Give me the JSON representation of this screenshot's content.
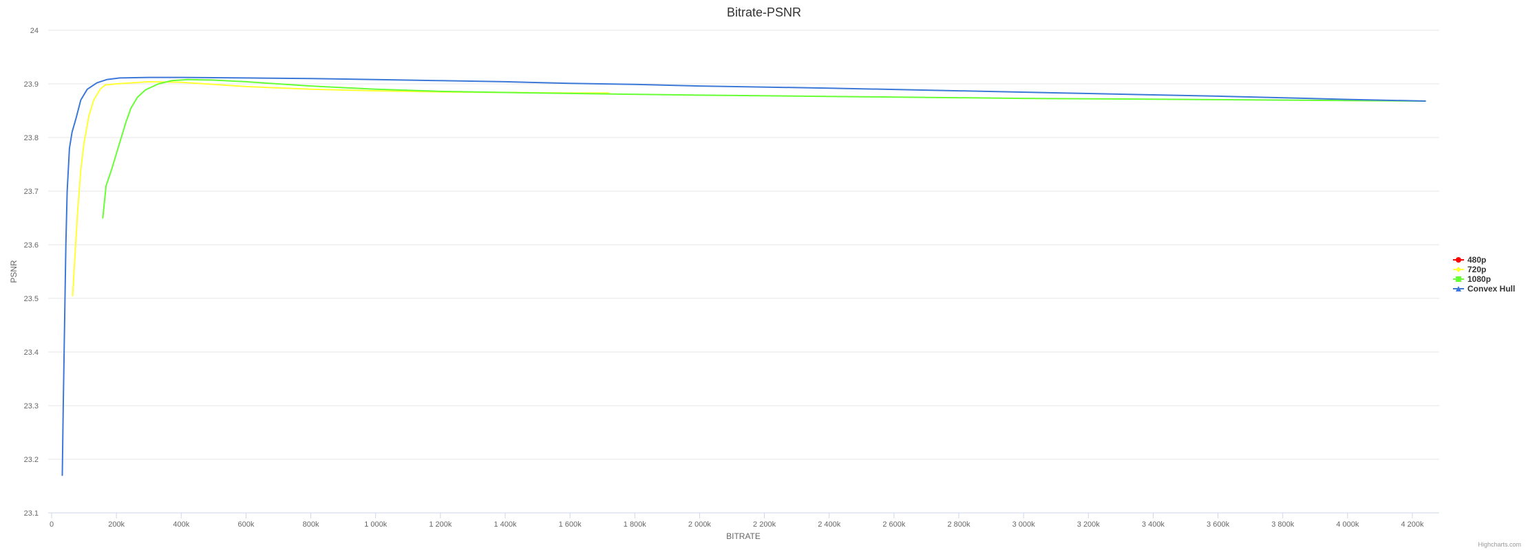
{
  "chart_data": {
    "type": "line",
    "title": "Bitrate-PSNR",
    "xlabel": "BITRATE",
    "ylabel": "PSNR",
    "xlim": [
      0,
      4300000
    ],
    "ylim": [
      23.1,
      24
    ],
    "x_ticks": [
      0,
      200000,
      400000,
      600000,
      800000,
      1000000,
      1200000,
      1400000,
      1600000,
      1800000,
      2000000,
      2200000,
      2400000,
      2600000,
      2800000,
      3000000,
      3200000,
      3400000,
      3600000,
      3800000,
      4000000,
      4200000
    ],
    "x_tick_labels": [
      "0",
      "200k",
      "400k",
      "600k",
      "800k",
      "1 000k",
      "1 200k",
      "1 400k",
      "1 600k",
      "1 800k",
      "2 000k",
      "2 200k",
      "2 400k",
      "2 600k",
      "2 800k",
      "3 000k",
      "3 200k",
      "3 400k",
      "3 600k",
      "3 800k",
      "4 000k",
      "4 200k"
    ],
    "y_ticks": [
      23.1,
      23.2,
      23.3,
      23.4,
      23.5,
      23.6,
      23.7,
      23.8,
      23.9,
      24
    ],
    "y_tick_labels": [
      "23.1",
      "23.2",
      "23.3",
      "23.4",
      "23.5",
      "23.6",
      "23.7",
      "23.8",
      "23.9",
      "24"
    ],
    "grid": true,
    "legend_position": "right",
    "series": [
      {
        "name": "480p",
        "color": "#ff0000",
        "marker": "circle",
        "points": []
      },
      {
        "name": "720p",
        "color": "#ffff33",
        "marker": "diamond",
        "points": [
          [
            65000,
            23.505
          ],
          [
            70000,
            23.56
          ],
          [
            80000,
            23.66
          ],
          [
            90000,
            23.74
          ],
          [
            100000,
            23.79
          ],
          [
            115000,
            23.84
          ],
          [
            130000,
            23.87
          ],
          [
            150000,
            23.89
          ],
          [
            165000,
            23.898
          ],
          [
            200000,
            23.9
          ],
          [
            300000,
            23.904
          ],
          [
            400000,
            23.903
          ],
          [
            500000,
            23.899
          ],
          [
            600000,
            23.895
          ],
          [
            800000,
            23.89
          ],
          [
            1000000,
            23.887
          ],
          [
            1200000,
            23.885
          ],
          [
            1400000,
            23.884
          ],
          [
            1600000,
            23.883
          ],
          [
            1720000,
            23.883
          ]
        ]
      },
      {
        "name": "1080p",
        "color": "#66ff33",
        "marker": "square",
        "points": [
          [
            158000,
            23.65
          ],
          [
            168000,
            23.71
          ],
          [
            185000,
            23.74
          ],
          [
            200000,
            23.77
          ],
          [
            215000,
            23.8
          ],
          [
            230000,
            23.83
          ],
          [
            245000,
            23.855
          ],
          [
            265000,
            23.875
          ],
          [
            290000,
            23.889
          ],
          [
            330000,
            23.9
          ],
          [
            370000,
            23.906
          ],
          [
            420000,
            23.908
          ],
          [
            500000,
            23.907
          ],
          [
            600000,
            23.904
          ],
          [
            800000,
            23.896
          ],
          [
            1000000,
            23.89
          ],
          [
            1200000,
            23.886
          ],
          [
            1500000,
            23.883
          ],
          [
            2000000,
            23.879
          ],
          [
            2500000,
            23.876
          ],
          [
            3000000,
            23.873
          ],
          [
            3500000,
            23.871
          ],
          [
            4000000,
            23.869
          ],
          [
            4240000,
            23.868
          ]
        ]
      },
      {
        "name": "Convex Hull",
        "color": "#3c78d8",
        "marker": "triangle",
        "points": [
          [
            33000,
            23.17
          ],
          [
            36000,
            23.3
          ],
          [
            40000,
            23.45
          ],
          [
            44000,
            23.6
          ],
          [
            48000,
            23.7
          ],
          [
            55000,
            23.78
          ],
          [
            63000,
            23.81
          ],
          [
            75000,
            23.835
          ],
          [
            90000,
            23.87
          ],
          [
            110000,
            23.89
          ],
          [
            140000,
            23.902
          ],
          [
            170000,
            23.908
          ],
          [
            210000,
            23.911
          ],
          [
            300000,
            23.912
          ],
          [
            400000,
            23.912
          ],
          [
            600000,
            23.911
          ],
          [
            800000,
            23.91
          ],
          [
            1000000,
            23.908
          ],
          [
            1200000,
            23.906
          ],
          [
            1400000,
            23.904
          ],
          [
            1600000,
            23.901
          ],
          [
            1800000,
            23.899
          ],
          [
            2000000,
            23.896
          ],
          [
            2400000,
            23.892
          ],
          [
            2800000,
            23.887
          ],
          [
            3200000,
            23.882
          ],
          [
            3600000,
            23.877
          ],
          [
            4000000,
            23.871
          ],
          [
            4240000,
            23.868
          ]
        ]
      }
    ]
  },
  "credits": "Highcharts.com"
}
